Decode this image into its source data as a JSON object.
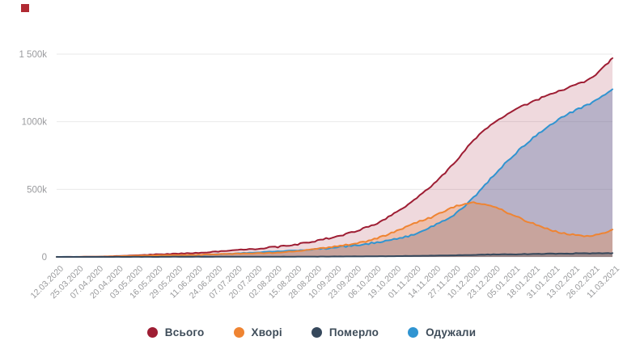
{
  "page": {
    "background": "#ffffff",
    "corner_marker_color": "#b02a33"
  },
  "y_axis": {
    "tick_labels": [
      "1 500k",
      "1000k",
      "500k",
      "0"
    ],
    "tick_values": [
      1500,
      1000,
      500,
      0
    ],
    "label_color": "#9a9b9e",
    "grid_color": "#e9e9ea"
  },
  "x_axis": {
    "label_color": "#98999b"
  },
  "chart_data": {
    "type": "area",
    "title": "",
    "xlabel": "",
    "ylabel": "",
    "unit": "thousands",
    "ylim": [
      0,
      1500
    ],
    "grid": true,
    "legend_position": "bottom",
    "x": [
      "12.03.2020",
      "25.03.2020",
      "07.04.2020",
      "20.04.2020",
      "03.05.2020",
      "16.05.2020",
      "29.05.2020",
      "11.06.2020",
      "24.06.2020",
      "07.07.2020",
      "20.07.2020",
      "02.08.2020",
      "15.08.2020",
      "28.08.2020",
      "10.09.2020",
      "23.09.2020",
      "06.10.2020",
      "19.10.2020",
      "01.11.2020",
      "14.11.2020",
      "27.11.2020",
      "10.12.2020",
      "23.12.2020",
      "05.01.2021",
      "18.01.2021",
      "31.01.2021",
      "13.02.2021",
      "26.02.2021",
      "11.03.2021"
    ],
    "draw_order": [
      "vsogo",
      "oduzhaly",
      "khvori",
      "pomerlo"
    ],
    "series": [
      {
        "key": "vsogo",
        "name": "Всього",
        "color": "#9e1d33",
        "fill": "rgba(158,29,51,0.17)",
        "values": [
          0,
          0.2,
          2,
          6,
          12,
          18,
          23,
          29,
          39,
          50,
          61,
          73,
          91,
          117,
          148,
          188,
          240,
          320,
          420,
          540,
          690,
          860,
          990,
          1080,
          1150,
          1210,
          1265,
          1330,
          1470
        ]
      },
      {
        "key": "khvori",
        "name": "Хворі",
        "color": "#ef8432",
        "fill": "rgba(239,132,60,0.30)",
        "values": [
          0,
          0.2,
          1.5,
          4.3,
          8.7,
          11.6,
          13.4,
          15.2,
          20,
          23.8,
          26.5,
          31,
          42,
          57.5,
          74.5,
          99,
          130,
          184,
          248,
          300,
          368,
          400,
          370,
          308,
          246,
          195,
          163,
          158,
          202
        ]
      },
      {
        "key": "pomerlo",
        "name": "Померло",
        "color": "#36485c",
        "fill": "rgba(46,65,87,0.30)",
        "values": [
          0,
          0,
          0.1,
          0.2,
          0.3,
          0.5,
          0.7,
          0.8,
          1,
          1.3,
          1.5,
          1.7,
          2,
          2.4,
          3,
          3.8,
          4.6,
          5.8,
          7.2,
          9.2,
          11.7,
          14.5,
          17.5,
          20,
          22,
          24,
          25.5,
          26.5,
          28
        ]
      },
      {
        "key": "oduzhaly",
        "name": "Одужали",
        "color": "#3094d1",
        "fill": "rgba(95,115,165,0.38)",
        "values": [
          0,
          0,
          0.5,
          1.5,
          3,
          6,
          9,
          13,
          18,
          25,
          33,
          40,
          47,
          57,
          70,
          85,
          105,
          130,
          165,
          230,
          310,
          440,
          600,
          750,
          880,
          990,
          1075,
          1145,
          1240
        ]
      }
    ]
  }
}
